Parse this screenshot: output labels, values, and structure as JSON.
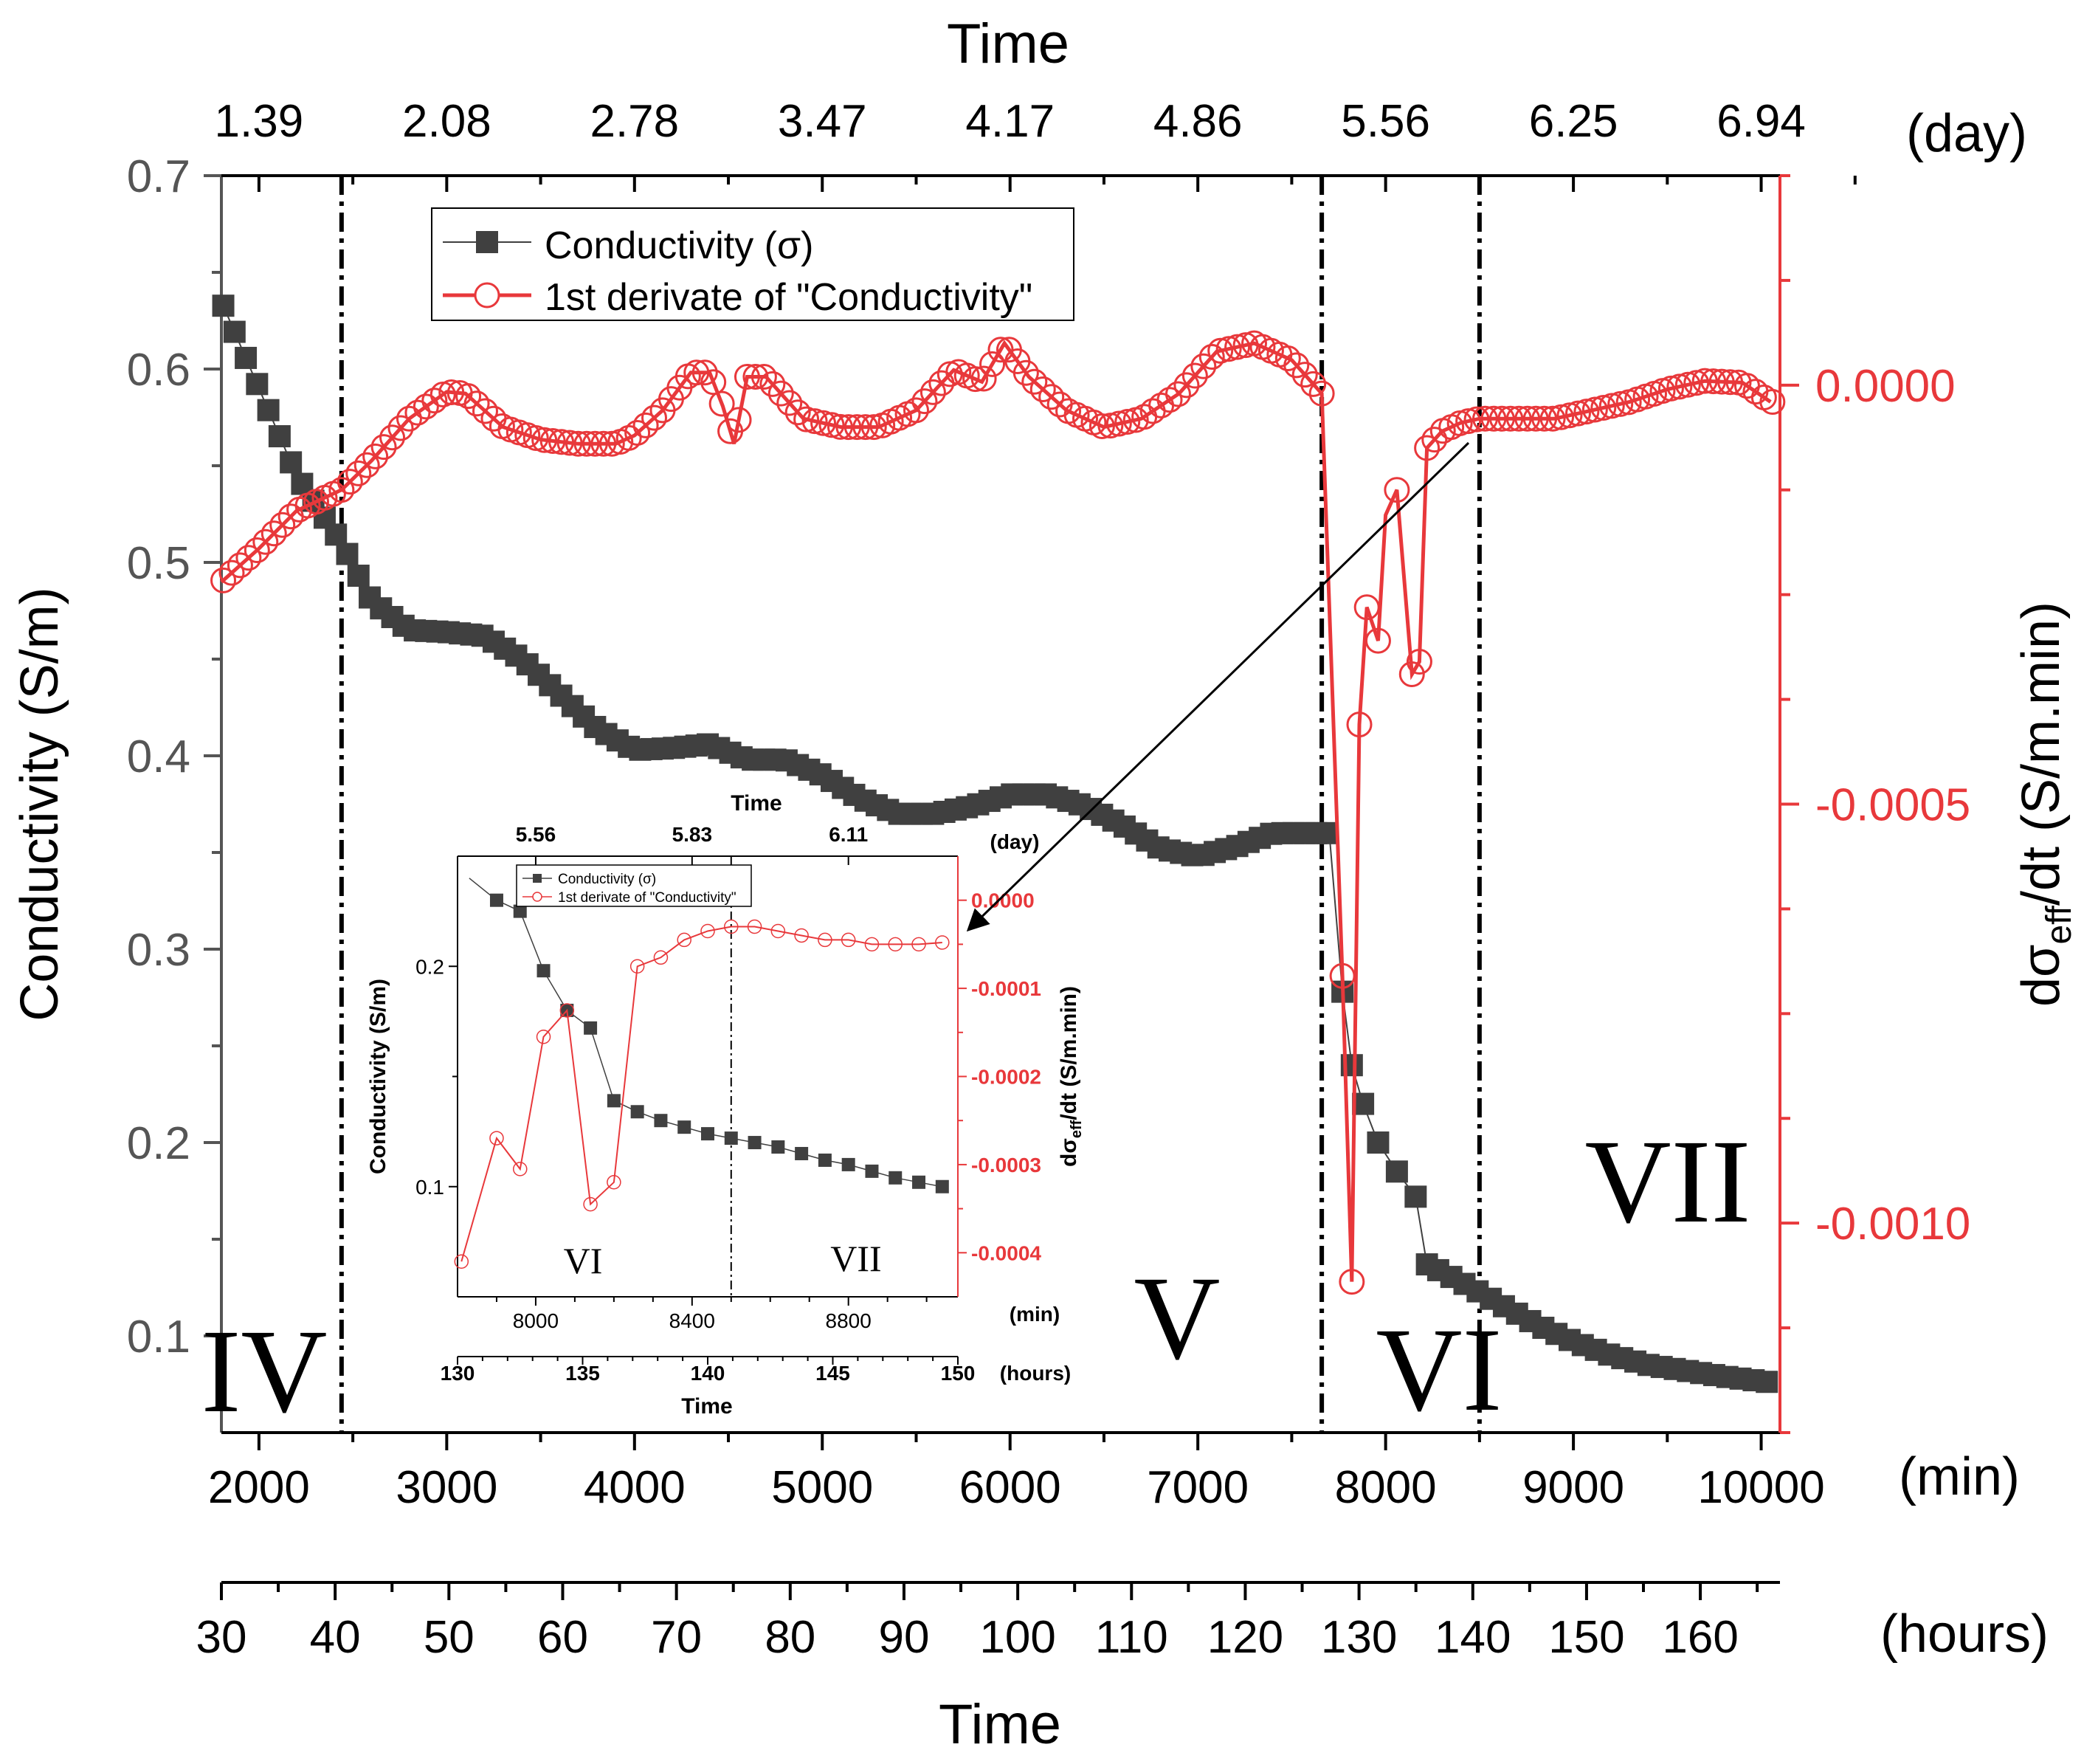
{
  "chart_data": [
    {
      "type": "line",
      "role": "main",
      "title": "",
      "top_axis_title": "Time",
      "top_axis_unit": "(day)",
      "top_ticks": [
        "1.39",
        "2.08",
        "2.78",
        "3.47",
        "4.17",
        "4.86",
        "5.56",
        "6.25",
        "6.94"
      ],
      "top_tick_positions": [
        2000,
        3000,
        4000,
        5000,
        6000,
        7000,
        8000,
        9000,
        10000
      ],
      "xlabel": "(min)",
      "xlim": [
        1800,
        10100
      ],
      "x_ticks": [
        2000,
        3000,
        4000,
        5000,
        6000,
        7000,
        8000,
        9000,
        10000
      ],
      "hours_axis_title": "Time",
      "hours_axis_unit": "(hours)",
      "hours_ticks": [
        30,
        40,
        50,
        60,
        70,
        80,
        90,
        100,
        110,
        120,
        130,
        140,
        150,
        160
      ],
      "ylabel": "Conductivity (S/m)",
      "ylim": [
        0.05,
        0.7
      ],
      "y_ticks": [
        "0.1",
        "0.2",
        "0.3",
        "0.4",
        "0.5",
        "0.6",
        "0.7"
      ],
      "y2label": "dσeff/dt (S/m.min)",
      "y2lim": [
        -0.00125,
        0.00025
      ],
      "y2_ticks": [
        "0.0000",
        "-0.0005",
        "-0.0010"
      ],
      "y2_tick_values": [
        0,
        -0.0005,
        -0.001
      ],
      "legend_position": "top-center",
      "region_dividers_x": [
        2440,
        7660,
        8500
      ],
      "region_labels": [
        "IV",
        "V",
        "VI",
        "VII"
      ],
      "colors": {
        "conductivity": "#404040",
        "derivative": "#e8383b",
        "axis": "#555555"
      },
      "series": [
        {
          "name": "Conductivity (σ)",
          "axis": "left",
          "x": [
            1800,
            2000,
            2200,
            2440,
            2600,
            2800,
            3000,
            3200,
            3400,
            3600,
            3800,
            4000,
            4200,
            4400,
            4600,
            4800,
            5000,
            5200,
            5400,
            5600,
            5800,
            6000,
            6200,
            6400,
            6600,
            6800,
            7000,
            7200,
            7400,
            7600,
            7700,
            7770,
            7820,
            7880,
            7960,
            8060,
            8160,
            8220,
            8400,
            8600,
            8800,
            9000,
            9200,
            9400,
            9600,
            9800,
            10050
          ],
          "values": [
            0.635,
            0.59,
            0.545,
            0.51,
            0.48,
            0.465,
            0.464,
            0.462,
            0.45,
            0.432,
            0.414,
            0.403,
            0.404,
            0.406,
            0.398,
            0.398,
            0.39,
            0.378,
            0.37,
            0.37,
            0.374,
            0.38,
            0.38,
            0.374,
            0.364,
            0.352,
            0.348,
            0.353,
            0.36,
            0.36,
            0.36,
            0.278,
            0.24,
            0.22,
            0.2,
            0.185,
            0.172,
            0.137,
            0.128,
            0.117,
            0.106,
            0.097,
            0.09,
            0.085,
            0.082,
            0.079,
            0.076
          ]
        },
        {
          "name": "1st derivate of \"Conductivity\"",
          "axis": "right",
          "x": [
            1800,
            2000,
            2200,
            2440,
            2600,
            2800,
            3000,
            3100,
            3300,
            3500,
            3700,
            3900,
            4000,
            4150,
            4300,
            4400,
            4470,
            4530,
            4600,
            4700,
            4900,
            5100,
            5300,
            5500,
            5700,
            5850,
            5970,
            6100,
            6300,
            6500,
            6700,
            6900,
            7100,
            7300,
            7400,
            7500,
            7660,
            7770,
            7820,
            7860,
            7900,
            7960,
            8000,
            8060,
            8140,
            8180,
            8220,
            8300,
            8400,
            8500,
            8700,
            8900,
            9100,
            9300,
            9500,
            9700,
            9900,
            10050
          ],
          "values": [
            -0.000235,
            -0.000195,
            -0.00015,
            -0.000125,
            -9e-05,
            -4e-05,
            -8e-06,
            -1e-05,
            -5e-05,
            -6.5e-05,
            -7e-05,
            -7e-05,
            -6e-05,
            -3e-05,
            1.5e-05,
            1.5e-05,
            -2.5e-05,
            -7e-05,
            1e-05,
            1e-05,
            -4e-05,
            -5e-05,
            -5e-05,
            -3e-05,
            1.8e-05,
            4e-06,
            5e-05,
            1e-05,
            -3e-05,
            -5e-05,
            -4e-05,
            -1e-05,
            4e-05,
            5e-05,
            4e-05,
            3e-05,
            -1e-05,
            -0.000705,
            -0.00107,
            -0.000405,
            -0.000265,
            -0.000305,
            -0.000155,
            -0.000125,
            -0.000345,
            -0.00033,
            -7.5e-05,
            -5.5e-05,
            -4.5e-05,
            -4e-05,
            -4e-05,
            -4e-05,
            -3e-05,
            -2e-05,
            -5e-06,
            5e-06,
            3e-06,
            -2e-05
          ]
        }
      ]
    },
    {
      "type": "line",
      "role": "inset",
      "title": "",
      "top_axis_title": "Time",
      "top_axis_unit": "(day)",
      "top_ticks": [
        "5.56",
        "5.83",
        "6.11"
      ],
      "top_tick_positions": [
        8000,
        8400,
        8800
      ],
      "xlabel": "(min)",
      "xlim": [
        7800,
        9080
      ],
      "x_ticks": [
        8000,
        8400,
        8800
      ],
      "hours_axis_title": "Time",
      "hours_axis_unit": "(hours)",
      "hours_ticks": [
        130,
        135,
        140,
        145,
        150
      ],
      "ylabel": "Conductivity (S/m)",
      "ylim": [
        0.05,
        0.25
      ],
      "y_ticks": [
        "0.1",
        "0.2"
      ],
      "y2label": "dσeff/dt (S/m.min)",
      "y2lim": [
        -0.00045,
        5e-05
      ],
      "y2_ticks": [
        "0.0000",
        "-0.0001",
        "-0.0002",
        "-0.0003",
        "-0.0004"
      ],
      "y2_tick_values": [
        0,
        -0.0001,
        -0.0002,
        -0.0003,
        -0.0004
      ],
      "region_dividers_x": [
        8500
      ],
      "region_labels": [
        "VI",
        "VII"
      ],
      "series": [
        {
          "name": "Conductivity (σ)",
          "axis": "left",
          "x": [
            7830,
            7900,
            7960,
            8020,
            8080,
            8140,
            8200,
            8260,
            8320,
            8380,
            8440,
            8500,
            8560,
            8620,
            8680,
            8740,
            8800,
            8860,
            8920,
            8980,
            9040
          ],
          "values": [
            0.24,
            0.23,
            0.225,
            0.198,
            0.18,
            0.172,
            0.139,
            0.134,
            0.13,
            0.127,
            0.124,
            0.122,
            0.12,
            0.118,
            0.115,
            0.112,
            0.11,
            0.107,
            0.104,
            0.102,
            0.1
          ],
          "markers_from_index": 1
        },
        {
          "name": "1st derivate of \"Conductivity\"",
          "axis": "right",
          "x": [
            7810,
            7900,
            7960,
            8020,
            8080,
            8140,
            8200,
            8260,
            8320,
            8380,
            8440,
            8500,
            8560,
            8620,
            8680,
            8740,
            8800,
            8860,
            8920,
            8980,
            9040
          ],
          "values": [
            -0.00041,
            -0.00027,
            -0.000305,
            -0.000155,
            -0.000125,
            -0.000345,
            -0.00032,
            -7.5e-05,
            -6.5e-05,
            -4.5e-05,
            -3.5e-05,
            -3e-05,
            -3e-05,
            -3.5e-05,
            -4e-05,
            -4.5e-05,
            -4.5e-05,
            -5e-05,
            -5e-05,
            -5e-05,
            -4.8e-05
          ]
        }
      ]
    }
  ]
}
